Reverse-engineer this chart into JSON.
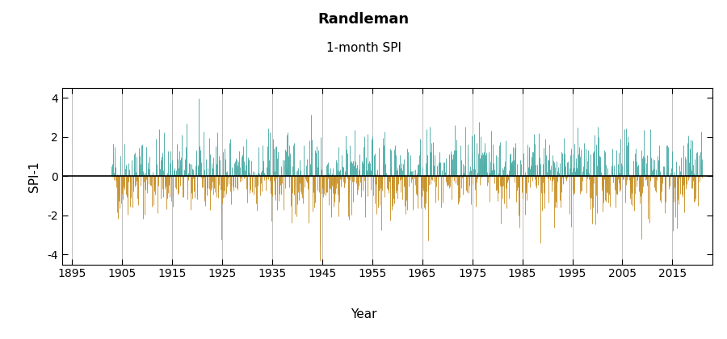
{
  "title": "Randleman",
  "subtitle": "1-month SPI",
  "ylabel": "SPI-1",
  "xlabel": "Year",
  "data_start_year": 1903,
  "data_end_year": 2021,
  "ylim": [
    -4.5,
    4.5
  ],
  "yticks": [
    -4,
    -2,
    0,
    2,
    4
  ],
  "xlim": [
    1893,
    2023
  ],
  "xticks": [
    1895,
    1905,
    1915,
    1925,
    1935,
    1945,
    1955,
    1965,
    1975,
    1985,
    1995,
    2005,
    2015
  ],
  "color_positive": "#4DADA7",
  "color_negative": "#C8922A",
  "color_zero_line": "#000000",
  "color_grid": "#C0C0C0",
  "background_color": "#FFFFFF",
  "title_fontsize": 13,
  "subtitle_fontsize": 11,
  "label_fontsize": 11,
  "tick_fontsize": 10,
  "seed": 42
}
